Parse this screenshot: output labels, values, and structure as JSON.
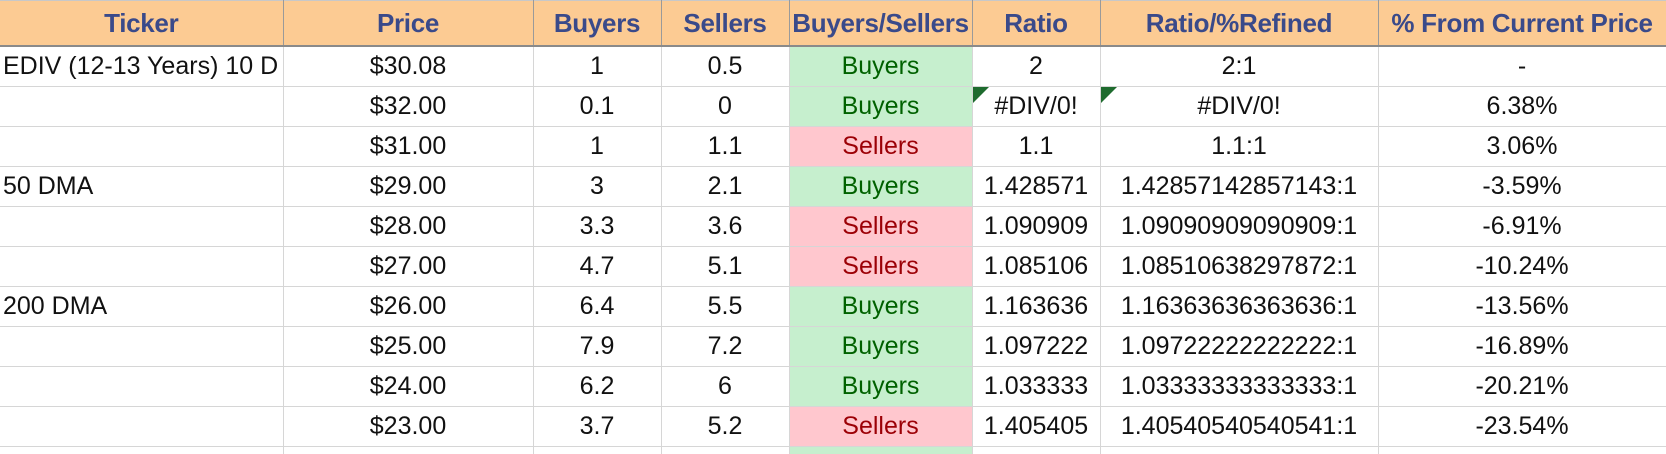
{
  "colors": {
    "header_bg": "#fccb93",
    "header_text": "#3a4a8a",
    "buyers_bg": "#c6efce",
    "buyers_text": "#006100",
    "sellers_bg": "#ffc7ce",
    "sellers_text": "#9c0006",
    "error_flag": "#1e6b2e"
  },
  "table": {
    "headers": [
      "Ticker",
      "Price",
      "Buyers",
      "Sellers",
      "Buyers/Sellers",
      "Ratio",
      "Ratio/%Refined",
      "% From Current Price"
    ],
    "rows": [
      {
        "ticker": "EDIV (12-13 Years) 10 D",
        "price": "$30.08",
        "buyers": "1",
        "sellers": "0.5",
        "status": "Buyers",
        "ratio": "2",
        "refined": "2:1",
        "pct": "-"
      },
      {
        "ticker": "",
        "price": "$32.00",
        "buyers": "0.1",
        "sellers": "0",
        "status": "Buyers",
        "ratio": "#DIV/0!",
        "refined": "#DIV/0!",
        "pct": "6.38%"
      },
      {
        "ticker": "",
        "price": "$31.00",
        "buyers": "1",
        "sellers": "1.1",
        "status": "Sellers",
        "ratio": "1.1",
        "refined": "1.1:1",
        "pct": "3.06%"
      },
      {
        "ticker": "50 DMA",
        "price": "$29.00",
        "buyers": "3",
        "sellers": "2.1",
        "status": "Buyers",
        "ratio": "1.428571",
        "refined": "1.42857142857143:1",
        "pct": "-3.59%"
      },
      {
        "ticker": "",
        "price": "$28.00",
        "buyers": "3.3",
        "sellers": "3.6",
        "status": "Sellers",
        "ratio": "1.090909",
        "refined": "1.09090909090909:1",
        "pct": "-6.91%"
      },
      {
        "ticker": "",
        "price": "$27.00",
        "buyers": "4.7",
        "sellers": "5.1",
        "status": "Sellers",
        "ratio": "1.085106",
        "refined": "1.08510638297872:1",
        "pct": "-10.24%"
      },
      {
        "ticker": "200 DMA",
        "price": "$26.00",
        "buyers": "6.4",
        "sellers": "5.5",
        "status": "Buyers",
        "ratio": "1.163636",
        "refined": "1.16363636363636:1",
        "pct": "-13.56%"
      },
      {
        "ticker": "",
        "price": "$25.00",
        "buyers": "7.9",
        "sellers": "7.2",
        "status": "Buyers",
        "ratio": "1.097222",
        "refined": "1.09722222222222:1",
        "pct": "-16.89%"
      },
      {
        "ticker": "",
        "price": "$24.00",
        "buyers": "6.2",
        "sellers": "6",
        "status": "Buyers",
        "ratio": "1.033333",
        "refined": "1.03333333333333:1",
        "pct": "-20.21%"
      },
      {
        "ticker": "",
        "price": "$23.00",
        "buyers": "3.7",
        "sellers": "5.2",
        "status": "Sellers",
        "ratio": "1.405405",
        "refined": "1.40540540540541:1",
        "pct": "-23.54%"
      }
    ]
  }
}
